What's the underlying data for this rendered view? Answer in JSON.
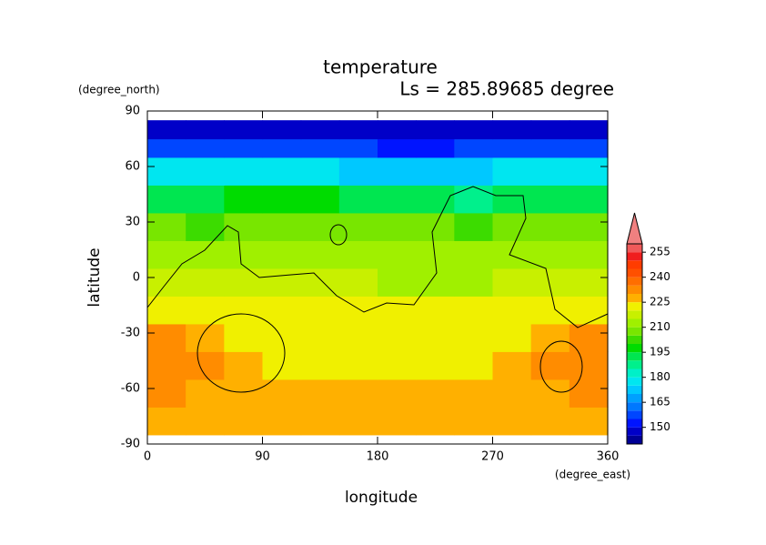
{
  "chart_data": {
    "type": "contour",
    "title": "temperature",
    "subtitle": "Ls = 285.89685 degree",
    "x_label": "longitude",
    "y_label": "latitude",
    "x_unit": "(degree_east)",
    "y_unit": "(degree_north)",
    "xlim": [
      0,
      360
    ],
    "ylim": [
      -90,
      90
    ],
    "xticks": [
      0,
      90,
      180,
      270,
      360
    ],
    "yticks": [
      -90,
      -60,
      -30,
      0,
      30,
      60,
      90
    ],
    "lon_edges": [
      0,
      30,
      60,
      90,
      120,
      150,
      180,
      210,
      240,
      270,
      300,
      330,
      360
    ],
    "lat_edges": [
      -85,
      -70,
      -55,
      -40,
      -25,
      -10,
      5,
      20,
      35,
      50,
      65,
      75,
      85
    ],
    "z": [
      [
        227,
        227,
        227,
        227,
        227,
        227,
        227,
        227,
        227,
        227,
        227,
        227
      ],
      [
        232,
        228,
        227,
        226,
        226,
        226,
        227,
        227,
        226,
        226,
        227,
        232
      ],
      [
        233,
        230,
        226,
        224,
        224,
        224,
        223,
        224,
        224,
        226,
        230,
        233
      ],
      [
        231,
        228,
        224,
        223,
        223,
        222,
        222,
        222,
        222,
        224,
        228,
        231
      ],
      [
        224,
        223,
        222,
        222,
        221,
        221,
        220,
        220,
        220,
        221,
        222,
        223
      ],
      [
        219,
        218,
        218,
        217,
        216,
        215,
        214,
        214,
        214,
        215,
        217,
        218
      ],
      [
        213,
        213,
        212,
        212,
        212,
        211,
        211,
        211,
        211,
        211,
        212,
        213
      ],
      [
        205,
        204,
        205,
        206,
        207,
        206,
        206,
        205,
        204,
        205,
        205,
        205
      ],
      [
        192,
        193,
        195,
        196,
        195,
        193,
        192,
        190,
        189,
        192,
        192,
        192
      ],
      [
        175,
        176,
        178,
        178,
        176,
        174,
        172,
        170,
        172,
        175,
        175,
        175
      ],
      [
        155,
        156,
        158,
        158,
        157,
        156,
        154,
        153,
        155,
        157,
        156,
        155
      ],
      [
        147,
        147,
        147,
        147,
        147,
        147,
        147,
        147,
        147,
        147,
        147,
        147
      ]
    ],
    "colorbar": {
      "levels": [
        145,
        150,
        155,
        160,
        165,
        170,
        175,
        180,
        185,
        190,
        195,
        200,
        205,
        210,
        215,
        220,
        225,
        230,
        235,
        240,
        245,
        250,
        255,
        260
      ],
      "colors": [
        "#000096",
        "#0000c8",
        "#0014ff",
        "#0046ff",
        "#0078ff",
        "#00a0ff",
        "#00c8ff",
        "#00e6f0",
        "#00f0c8",
        "#00f08c",
        "#00e650",
        "#00dc00",
        "#3cdc00",
        "#78e600",
        "#a0f000",
        "#c8f000",
        "#f0f000",
        "#ffb000",
        "#ff8c00",
        "#ff6e00",
        "#ff5000",
        "#ff3c00",
        "#f01e1e",
        "#f05a5a",
        "#f08080"
      ],
      "ticks": [
        150,
        165,
        180,
        195,
        210,
        225,
        240,
        255
      ]
    }
  }
}
